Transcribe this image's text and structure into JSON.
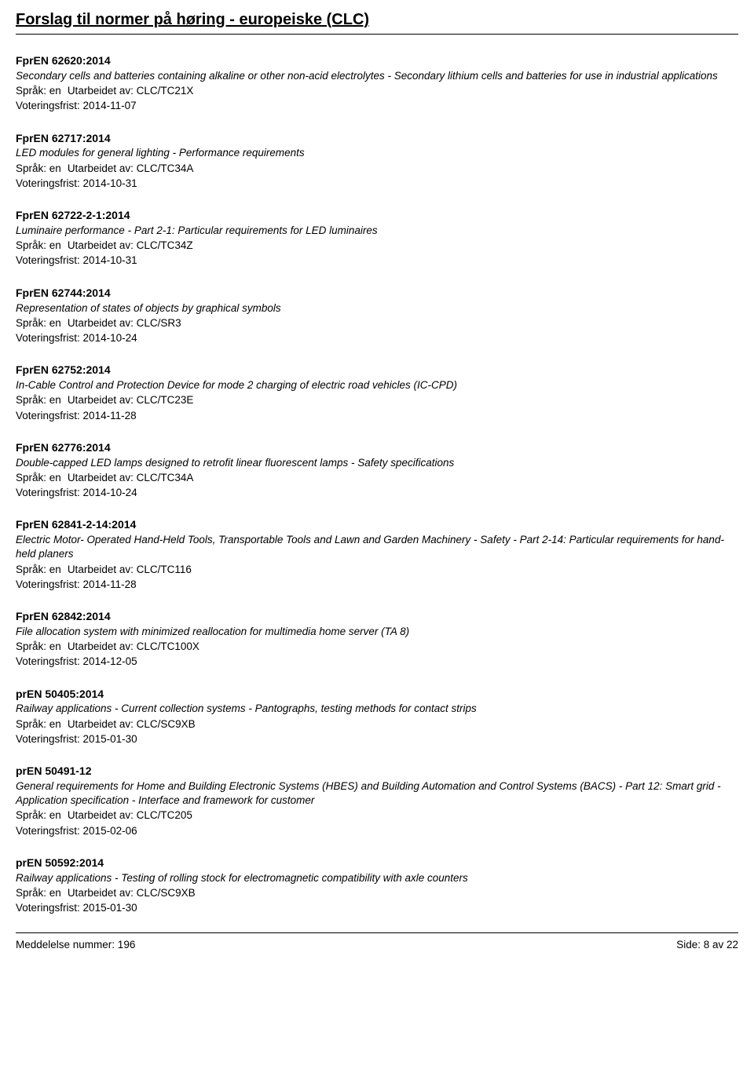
{
  "page": {
    "title": "Forslag til normer på høring - europeiske (CLC)"
  },
  "labels": {
    "sprak_prefix": "Språk: ",
    "utarbeidet_prefix": "Utarbeidet av: ",
    "voteringsfrist_prefix": "Voteringsfrist: "
  },
  "entries": [
    {
      "code": "FprEN 62620:2014",
      "desc": "Secondary cells and batteries containing alkaline or other non-acid electrolytes - Secondary lithium cells and batteries for use in industrial applications",
      "sprak": "en",
      "utarbeidet": "CLC/TC21X",
      "frist": "2014-11-07"
    },
    {
      "code": "FprEN 62717:2014",
      "desc": "LED modules for general lighting - Performance requirements",
      "sprak": "en",
      "utarbeidet": "CLC/TC34A",
      "frist": "2014-10-31"
    },
    {
      "code": "FprEN 62722-2-1:2014",
      "desc": "Luminaire performance - Part 2-1: Particular requirements for LED luminaires",
      "sprak": "en",
      "utarbeidet": "CLC/TC34Z",
      "frist": "2014-10-31"
    },
    {
      "code": "FprEN 62744:2014",
      "desc": "Representation of states of objects by graphical symbols",
      "sprak": "en",
      "utarbeidet": "CLC/SR3",
      "frist": "2014-10-24"
    },
    {
      "code": "FprEN 62752:2014",
      "desc": "In-Cable Control and Protection Device for mode 2 charging of electric road vehicles (IC-CPD)",
      "sprak": "en",
      "utarbeidet": "CLC/TC23E",
      "frist": "2014-11-28"
    },
    {
      "code": "FprEN 62776:2014",
      "desc": "Double-capped LED lamps designed to retrofit linear fluorescent lamps - Safety specifications",
      "sprak": "en",
      "utarbeidet": "CLC/TC34A",
      "frist": "2014-10-24"
    },
    {
      "code": "FprEN 62841-2-14:2014",
      "desc": "Electric Motor- Operated Hand-Held Tools, Transportable Tools and Lawn and Garden Machinery - Safety - Part 2-14: Particular requirements for hand-held planers",
      "sprak": "en",
      "utarbeidet": "CLC/TC116",
      "frist": "2014-11-28"
    },
    {
      "code": "FprEN 62842:2014",
      "desc": "File allocation system with minimized reallocation for multimedia home server (TA 8)",
      "sprak": "en",
      "utarbeidet": "CLC/TC100X",
      "frist": "2014-12-05"
    },
    {
      "code": "prEN 50405:2014",
      "desc": "Railway applications - Current collection systems - Pantographs, testing methods for contact strips",
      "sprak": "en",
      "utarbeidet": "CLC/SC9XB",
      "frist": "2015-01-30"
    },
    {
      "code": "prEN 50491-12",
      "desc": "General requirements for Home and Building Electronic Systems (HBES) and Building Automation and Control Systems (BACS) - Part 12: Smart grid - Application specification - Interface and framework for customer",
      "sprak": "en",
      "utarbeidet": "CLC/TC205",
      "frist": "2015-02-06"
    },
    {
      "code": "prEN 50592:2014",
      "desc": "Railway applications - Testing of rolling stock for electromagnetic compatibility with axle counters",
      "sprak": "en",
      "utarbeidet": "CLC/SC9XB",
      "frist": "2015-01-30"
    }
  ],
  "footer": {
    "left": "Meddelelse nummer: 196",
    "right": "Side: 8 av 22"
  }
}
